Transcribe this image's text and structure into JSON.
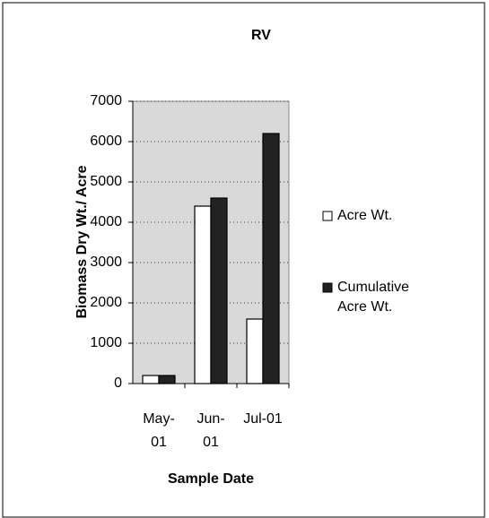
{
  "chart_data": {
    "type": "bar",
    "title": "RV",
    "x_label": "Sample Date",
    "y_label": "Biomass Dry Wt./ Acre",
    "categories": [
      "May-01",
      "Jun-01",
      "Jul-01"
    ],
    "series": [
      {
        "name": "Acre Wt.",
        "color": "#ffffff",
        "values": [
          200,
          4400,
          1600
        ]
      },
      {
        "name": "Cumulative Acre Wt.",
        "color": "#222222",
        "values": [
          200,
          4600,
          6200
        ]
      }
    ],
    "ylim": [
      0,
      7000
    ],
    "yticks": [
      0,
      1000,
      2000,
      3000,
      4000,
      5000,
      6000,
      7000
    ],
    "grid": true,
    "legend": "right"
  }
}
